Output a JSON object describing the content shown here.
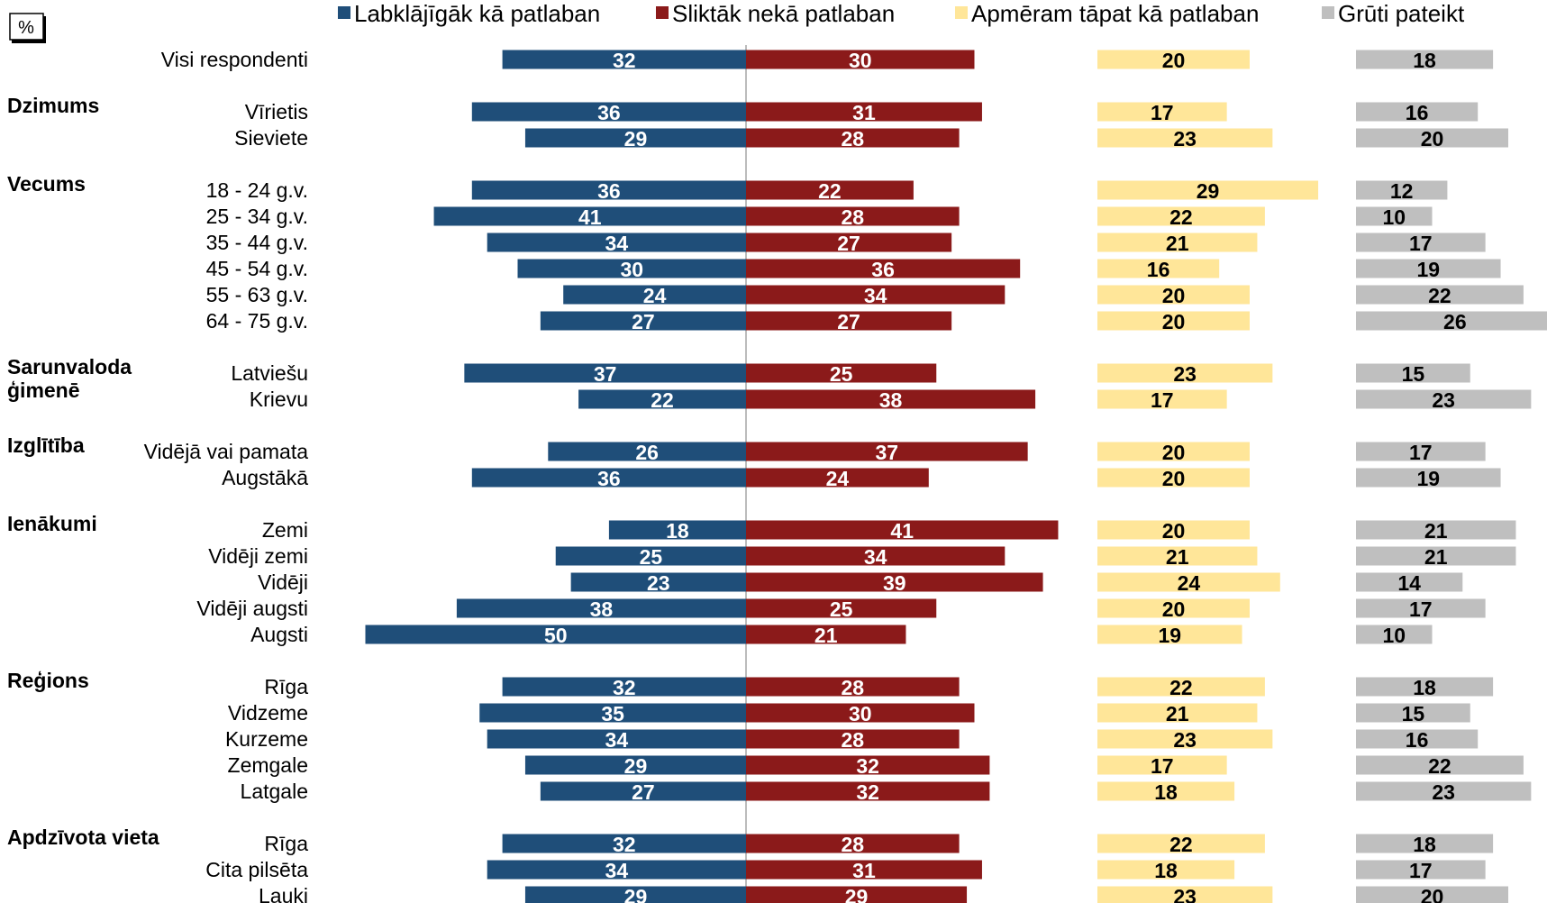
{
  "unit_badge": "%",
  "chart_data": {
    "type": "bar",
    "legend": {
      "placement": "top",
      "entries": [
        {
          "name": "Labklājīgāk kā patlaban",
          "color": "#1f4e79"
        },
        {
          "name": "Sliktāk nekā patlaban",
          "color": "#8b1a1a"
        },
        {
          "name": "Apmēram tāpat kā patlaban",
          "color": "#ffe699"
        },
        {
          "name": "Grūti pateikt",
          "color": "#bfbfbf"
        }
      ]
    },
    "groups": [
      {
        "name": "",
        "rows": [
          {
            "label": "Visi respondenti",
            "values": [
              32,
              30,
              20,
              18
            ]
          }
        ]
      },
      {
        "name": "Dzimums",
        "rows": [
          {
            "label": "Vīrietis",
            "values": [
              36,
              31,
              17,
              16
            ]
          },
          {
            "label": "Sieviete",
            "values": [
              29,
              28,
              23,
              20
            ]
          }
        ]
      },
      {
        "name": "Vecums",
        "rows": [
          {
            "label": "18 - 24 g.v.",
            "values": [
              36,
              22,
              29,
              12
            ]
          },
          {
            "label": "25 - 34 g.v.",
            "values": [
              41,
              28,
              22,
              10
            ]
          },
          {
            "label": "35 - 44 g.v.",
            "values": [
              34,
              27,
              21,
              17
            ]
          },
          {
            "label": "45 - 54 g.v.",
            "values": [
              30,
              36,
              16,
              19
            ]
          },
          {
            "label": "55 - 63 g.v.",
            "values": [
              24,
              34,
              20,
              22
            ]
          },
          {
            "label": "64 - 75 g.v.",
            "values": [
              27,
              27,
              20,
              26
            ]
          }
        ]
      },
      {
        "name": "Sarunvaloda ģimenē",
        "rows": [
          {
            "label": "Latviešu",
            "values": [
              37,
              25,
              23,
              15
            ]
          },
          {
            "label": "Krievu",
            "values": [
              22,
              38,
              17,
              23
            ]
          }
        ]
      },
      {
        "name": "Izglītība",
        "rows": [
          {
            "label": "Vidējā vai pamata",
            "values": [
              26,
              37,
              20,
              17
            ]
          },
          {
            "label": "Augstākā",
            "values": [
              36,
              24,
              20,
              19
            ]
          }
        ]
      },
      {
        "name": "Ienākumi",
        "rows": [
          {
            "label": "Zemi",
            "values": [
              18,
              41,
              20,
              21
            ]
          },
          {
            "label": "Vidēji zemi",
            "values": [
              25,
              34,
              21,
              21
            ]
          },
          {
            "label": "Vidēji",
            "values": [
              23,
              39,
              24,
              14
            ]
          },
          {
            "label": "Vidēji augsti",
            "values": [
              38,
              25,
              20,
              17
            ]
          },
          {
            "label": "Augsti",
            "values": [
              50,
              21,
              19,
              10
            ]
          }
        ]
      },
      {
        "name": "Reģions",
        "rows": [
          {
            "label": "Rīga",
            "values": [
              32,
              28,
              22,
              18
            ]
          },
          {
            "label": "Vidzeme",
            "values": [
              35,
              30,
              21,
              15
            ]
          },
          {
            "label": "Kurzeme",
            "values": [
              34,
              28,
              23,
              16
            ]
          },
          {
            "label": "Zemgale",
            "values": [
              29,
              32,
              17,
              22
            ]
          },
          {
            "label": "Latgale",
            "values": [
              27,
              32,
              18,
              23
            ]
          }
        ]
      },
      {
        "name": "Apdzīvota vieta",
        "rows": [
          {
            "label": "Rīga",
            "values": [
              32,
              28,
              22,
              18
            ]
          },
          {
            "label": "Cita pilsēta",
            "values": [
              34,
              31,
              18,
              17
            ]
          },
          {
            "label": "Lauki",
            "values": [
              29,
              29,
              23,
              20
            ]
          }
        ]
      }
    ]
  }
}
